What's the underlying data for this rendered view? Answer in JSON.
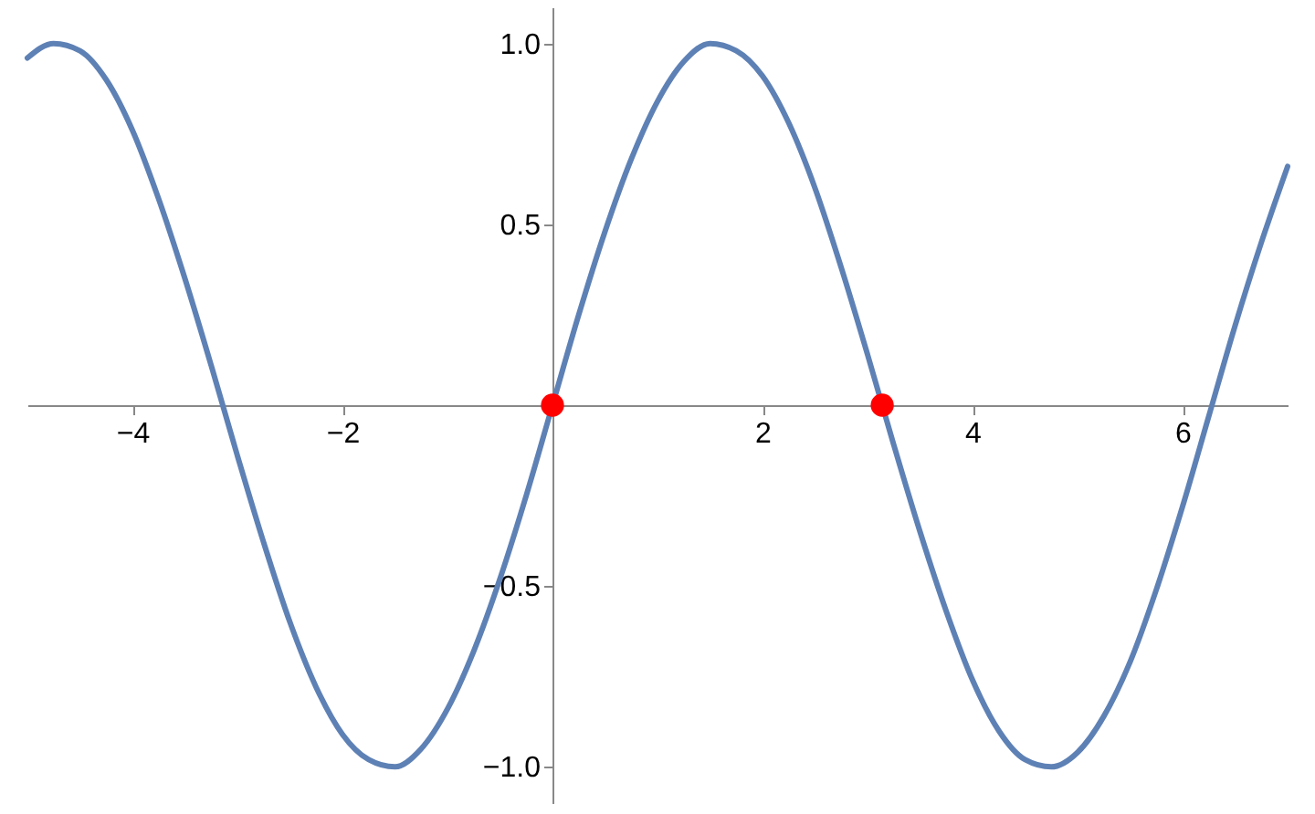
{
  "chart_data": {
    "type": "line",
    "xlim": [
      -5,
      7
    ],
    "ylim": [
      -1.1,
      1.1
    ],
    "xticks": [
      {
        "value": -4,
        "label": "−4"
      },
      {
        "value": -2,
        "label": "−2"
      },
      2,
      4,
      6
    ],
    "yticks": [
      {
        "value": -1,
        "label": "−1.0"
      },
      {
        "value": -0.5,
        "label": "−0.5"
      },
      {
        "value": 0.5,
        "label": "0.5"
      },
      {
        "value": 1,
        "label": "1.0"
      }
    ],
    "grid": false,
    "series": [
      {
        "type": "line",
        "color": "#5e81b5",
        "line_style": "solid",
        "marker": "none",
        "x": [
          -5,
          -4.75,
          -4.5,
          -4.25,
          -4,
          -3.75,
          -3.5,
          -3.25,
          -3,
          -2.75,
          -2.5,
          -2.25,
          -2,
          -1.75,
          -1.5,
          -1.25,
          -1,
          -0.75,
          -0.5,
          -0.25,
          0,
          0.25,
          0.5,
          0.75,
          1,
          1.25,
          1.5,
          1.75,
          2,
          2.25,
          2.5,
          2.75,
          3,
          3.25,
          3.5,
          3.75,
          4,
          4.25,
          4.5,
          4.75,
          5,
          5.25,
          5.5,
          5.75,
          6,
          6.25,
          6.5,
          6.75,
          7
        ],
        "values": [
          0.96,
          1.0,
          0.98,
          0.9,
          0.76,
          0.57,
          0.35,
          0.11,
          -0.14,
          -0.38,
          -0.6,
          -0.78,
          -0.91,
          -0.98,
          -1.0,
          -0.95,
          -0.84,
          -0.68,
          -0.48,
          -0.25,
          0,
          0.25,
          0.48,
          0.68,
          0.84,
          0.95,
          1.0,
          0.98,
          0.91,
          0.78,
          0.6,
          0.38,
          0.14,
          -0.11,
          -0.35,
          -0.57,
          -0.76,
          -0.9,
          -0.98,
          -1.0,
          -0.96,
          -0.86,
          -0.71,
          -0.51,
          -0.28,
          -0.03,
          0.22,
          0.45,
          0.66
        ]
      },
      {
        "type": "scatter",
        "color": "#ff0000",
        "marker": "circle",
        "x": [
          0,
          3.14
        ],
        "values": [
          0,
          0
        ]
      }
    ]
  }
}
